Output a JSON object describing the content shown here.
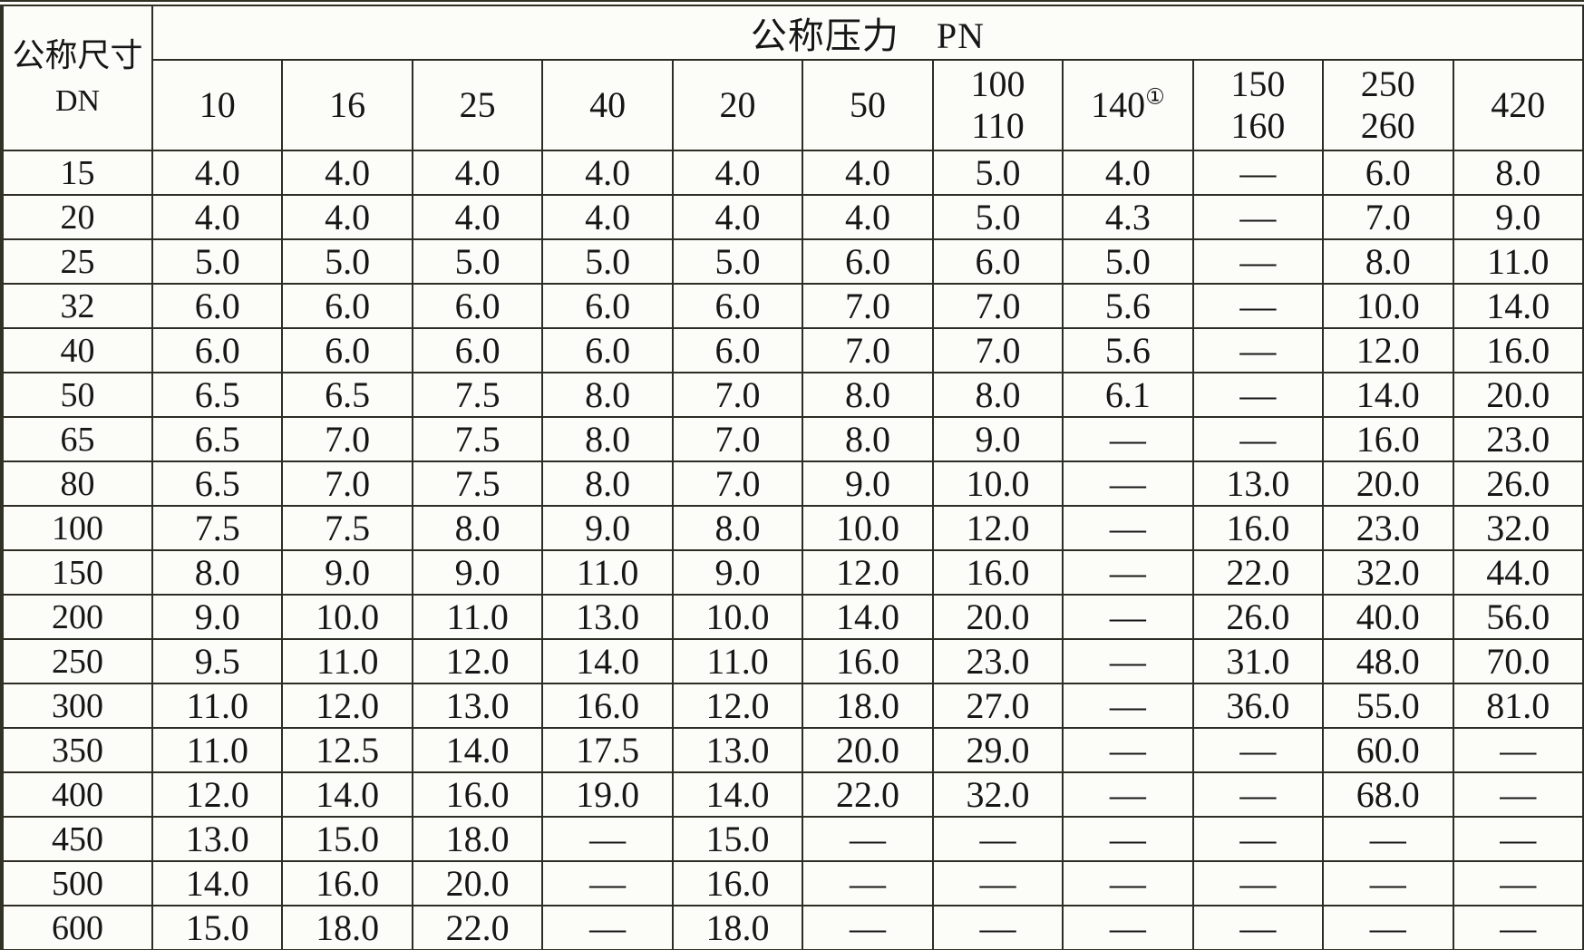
{
  "table": {
    "corner_header": {
      "line1": "公称尺寸",
      "line2": "DN"
    },
    "group_header": "公称压力　PN",
    "columns": [
      {
        "lines": [
          "10"
        ]
      },
      {
        "lines": [
          "16"
        ]
      },
      {
        "lines": [
          "25"
        ]
      },
      {
        "lines": [
          "40"
        ]
      },
      {
        "lines": [
          "20"
        ]
      },
      {
        "lines": [
          "50"
        ]
      },
      {
        "lines": [
          "100",
          "110"
        ]
      },
      {
        "lines": [
          "140"
        ],
        "superscript": "①"
      },
      {
        "lines": [
          "150",
          "160"
        ]
      },
      {
        "lines": [
          "250",
          "260"
        ]
      },
      {
        "lines": [
          "420"
        ]
      }
    ],
    "dash": "—",
    "rows": [
      {
        "dn": "15",
        "values": [
          "4.0",
          "4.0",
          "4.0",
          "4.0",
          "4.0",
          "4.0",
          "5.0",
          "4.0",
          "—",
          "6.0",
          "8.0"
        ]
      },
      {
        "dn": "20",
        "values": [
          "4.0",
          "4.0",
          "4.0",
          "4.0",
          "4.0",
          "4.0",
          "5.0",
          "4.3",
          "—",
          "7.0",
          "9.0"
        ]
      },
      {
        "dn": "25",
        "values": [
          "5.0",
          "5.0",
          "5.0",
          "5.0",
          "5.0",
          "6.0",
          "6.0",
          "5.0",
          "—",
          "8.0",
          "11.0"
        ]
      },
      {
        "dn": "32",
        "values": [
          "6.0",
          "6.0",
          "6.0",
          "6.0",
          "6.0",
          "7.0",
          "7.0",
          "5.6",
          "—",
          "10.0",
          "14.0"
        ]
      },
      {
        "dn": "40",
        "values": [
          "6.0",
          "6.0",
          "6.0",
          "6.0",
          "6.0",
          "7.0",
          "7.0",
          "5.6",
          "—",
          "12.0",
          "16.0"
        ]
      },
      {
        "dn": "50",
        "values": [
          "6.5",
          "6.5",
          "7.5",
          "8.0",
          "7.0",
          "8.0",
          "8.0",
          "6.1",
          "—",
          "14.0",
          "20.0"
        ]
      },
      {
        "dn": "65",
        "values": [
          "6.5",
          "7.0",
          "7.5",
          "8.0",
          "7.0",
          "8.0",
          "9.0",
          "—",
          "—",
          "16.0",
          "23.0"
        ]
      },
      {
        "dn": "80",
        "values": [
          "6.5",
          "7.0",
          "7.5",
          "8.0",
          "7.0",
          "9.0",
          "10.0",
          "—",
          "13.0",
          "20.0",
          "26.0"
        ]
      },
      {
        "dn": "100",
        "values": [
          "7.5",
          "7.5",
          "8.0",
          "9.0",
          "8.0",
          "10.0",
          "12.0",
          "—",
          "16.0",
          "23.0",
          "32.0"
        ]
      },
      {
        "dn": "150",
        "values": [
          "8.0",
          "9.0",
          "9.0",
          "11.0",
          "9.0",
          "12.0",
          "16.0",
          "—",
          "22.0",
          "32.0",
          "44.0"
        ]
      },
      {
        "dn": "200",
        "values": [
          "9.0",
          "10.0",
          "11.0",
          "13.0",
          "10.0",
          "14.0",
          "20.0",
          "—",
          "26.0",
          "40.0",
          "56.0"
        ]
      },
      {
        "dn": "250",
        "values": [
          "9.5",
          "11.0",
          "12.0",
          "14.0",
          "11.0",
          "16.0",
          "23.0",
          "—",
          "31.0",
          "48.0",
          "70.0"
        ]
      },
      {
        "dn": "300",
        "values": [
          "11.0",
          "12.0",
          "13.0",
          "16.0",
          "12.0",
          "18.0",
          "27.0",
          "—",
          "36.0",
          "55.0",
          "81.0"
        ]
      },
      {
        "dn": "350",
        "values": [
          "11.0",
          "12.5",
          "14.0",
          "17.5",
          "13.0",
          "20.0",
          "29.0",
          "—",
          "—",
          "60.0",
          "—"
        ]
      },
      {
        "dn": "400",
        "values": [
          "12.0",
          "14.0",
          "16.0",
          "19.0",
          "14.0",
          "22.0",
          "32.0",
          "—",
          "—",
          "68.0",
          "—"
        ]
      },
      {
        "dn": "450",
        "values": [
          "13.0",
          "15.0",
          "18.0",
          "—",
          "15.0",
          "—",
          "—",
          "—",
          "—",
          "—",
          "—"
        ]
      },
      {
        "dn": "500",
        "values": [
          "14.0",
          "16.0",
          "20.0",
          "—",
          "16.0",
          "—",
          "—",
          "—",
          "—",
          "—",
          "—"
        ]
      },
      {
        "dn": "600",
        "values": [
          "15.0",
          "18.0",
          "22.0",
          "—",
          "18.0",
          "—",
          "—",
          "—",
          "—",
          "—",
          "—"
        ]
      }
    ]
  },
  "colors": {
    "border": "#2e2d25",
    "outer_border": "#323126",
    "background": "#fcfcf8",
    "text": "#161616"
  }
}
